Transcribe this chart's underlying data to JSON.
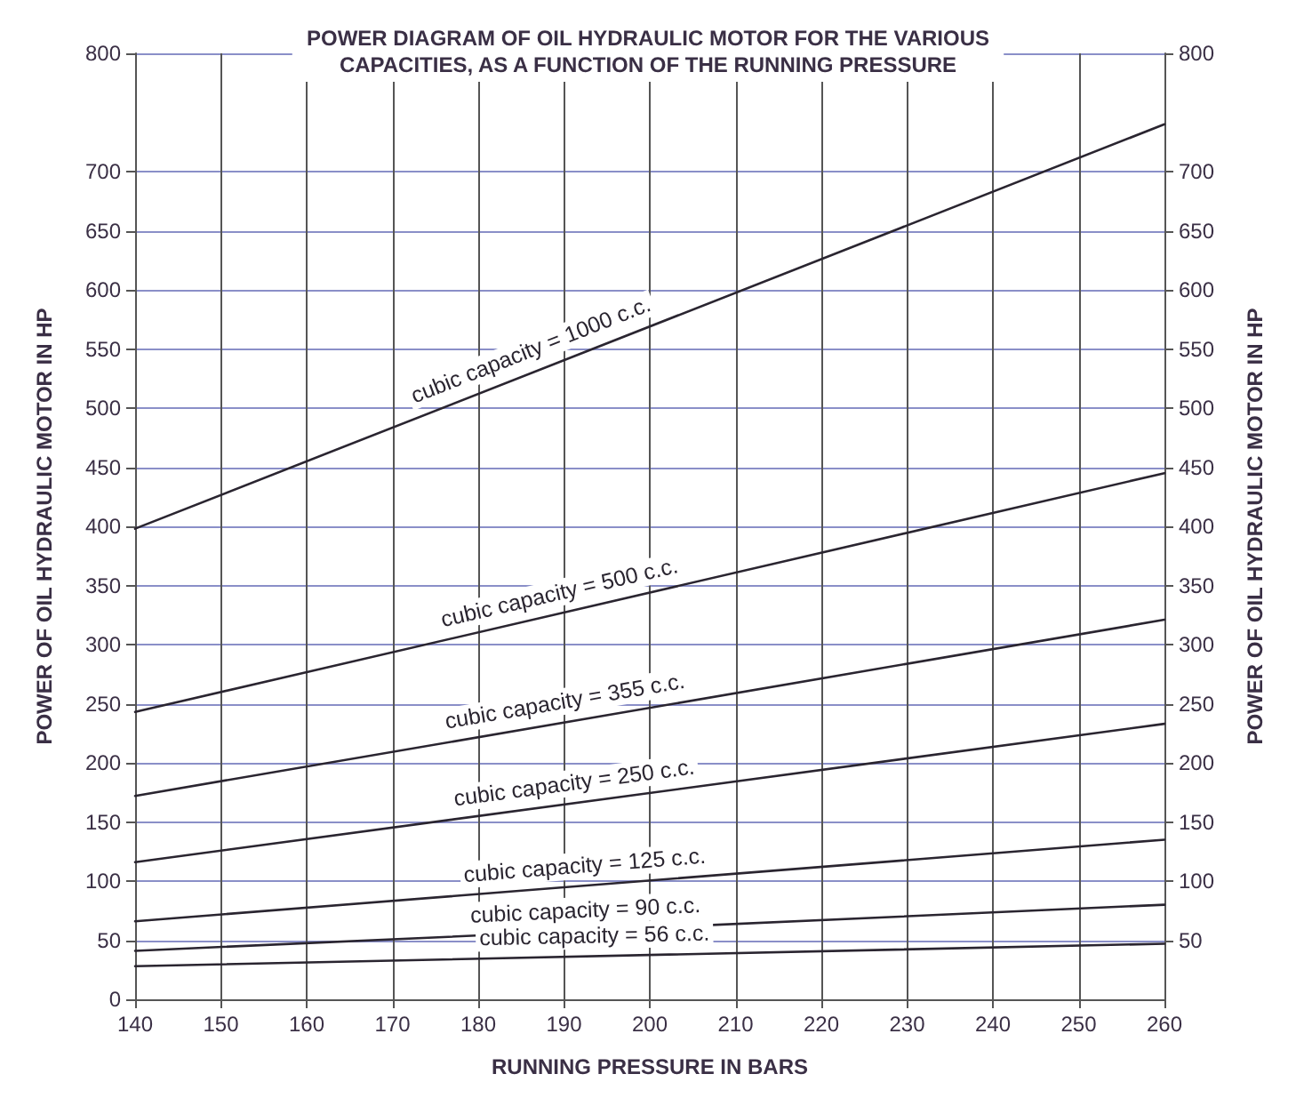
{
  "chart_data": {
    "type": "line",
    "title": "POWER DIAGRAM OF OIL HYDRAULIC MOTOR FOR THE VARIOUS\nCAPACITIES, AS A FUNCTION OF THE RUNNING PRESSURE",
    "xlabel": "RUNNING PRESSURE IN BARS",
    "ylabel": "POWER OF OIL HYDRAULIC MOTOR IN HP",
    "y2label": "POWER OF OIL HYDRAULIC MOTOR IN HP",
    "x": [
      140,
      260
    ],
    "series": [
      {
        "color": "#2a2530",
        "values": [
          398,
          740
        ]
      },
      {
        "color": "#2a2530",
        "values": [
          243,
          445
        ]
      },
      {
        "color": "#2a2530",
        "values": [
          172,
          321
        ]
      },
      {
        "color": "#2a2530",
        "values": [
          116,
          233
        ]
      },
      {
        "color": "#2a2530",
        "values": [
          66,
          135
        ]
      },
      {
        "color": "#2a2530",
        "values": [
          41,
          80
        ]
      },
      {
        "color": "#2a2530",
        "values": [
          28,
          47
        ]
      }
    ],
    "annotations": [
      {
        "text": "cubic capacity = 1000 c.c.",
        "x": 187,
        "y": 533
      },
      {
        "text": "cubic capacity = 500 c.c.",
        "x": 190,
        "y": 327
      },
      {
        "text": "cubic capacity = 355 c.c.",
        "x": 190.5,
        "y": 235
      },
      {
        "text": "cubic capacity = 250 c.c.",
        "x": 191.5,
        "y": 166
      },
      {
        "text": "cubic capacity = 125 c.c.",
        "x": 192.6,
        "y": 96
      },
      {
        "text": "cubic capacity = 90 c.c.",
        "x": 192.6,
        "y": 58
      },
      {
        "text": "cubic capacity = 56 c.c.",
        "x": 193.6,
        "y": 36.5
      }
    ],
    "xlim": [
      140,
      260
    ],
    "xticks": [
      140,
      150,
      160,
      170,
      180,
      190,
      200,
      210,
      220,
      230,
      240,
      250,
      260
    ],
    "ylim": [
      0,
      800
    ],
    "yticks": [
      0,
      50,
      100,
      150,
      200,
      250,
      300,
      350,
      400,
      450,
      500,
      550,
      600,
      650,
      700,
      800
    ],
    "y2lim": [
      0,
      800
    ],
    "y2ticks": [
      50,
      100,
      150,
      200,
      250,
      300,
      350,
      400,
      450,
      500,
      550,
      600,
      650,
      700,
      800
    ],
    "grid": true,
    "marker": "none",
    "line_style": "solid"
  }
}
